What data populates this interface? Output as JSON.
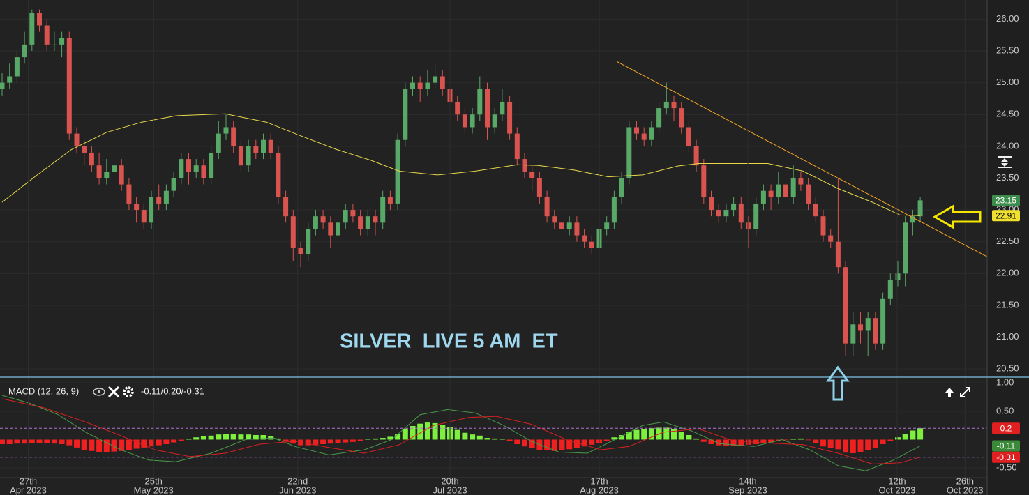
{
  "chart_data": [
    {
      "type": "candlestick",
      "annotation": "SILVER  LIVE 5 AM  ET",
      "up_color": "#58a868",
      "down_color": "#d9534f",
      "xlim": [
        0,
        132
      ],
      "ylim": [
        20.37,
        26.3
      ],
      "yticks": [
        {
          "value": 20.5,
          "label": "20.50"
        },
        {
          "value": 21,
          "label": "21.00"
        },
        {
          "value": 21.5,
          "label": "21.50"
        },
        {
          "value": 22,
          "label": "22.00"
        },
        {
          "value": 22.5,
          "label": "22.50"
        },
        {
          "value": 23,
          "label": "23.00"
        },
        {
          "value": 23.5,
          "label": "23.50"
        },
        {
          "value": 24,
          "label": "24.00"
        },
        {
          "value": 24.5,
          "label": "24.50"
        },
        {
          "value": 25,
          "label": "25.00"
        },
        {
          "value": 25.5,
          "label": "25.50"
        },
        {
          "value": 26,
          "label": "26.00"
        }
      ],
      "grid": true,
      "open": [
        24.9,
        25.0,
        25.1,
        25.4,
        25.6,
        26.1,
        25.9,
        25.6,
        25.6,
        25.7,
        24.2,
        24.0,
        23.9,
        23.7,
        23.5,
        23.6,
        23.7,
        23.4,
        23.1,
        23.0,
        22.8,
        23.2,
        23.1,
        23.3,
        23.5,
        23.8,
        23.6,
        23.7,
        23.5,
        23.9,
        24.2,
        24.3,
        24.0,
        23.7,
        24.0,
        23.9,
        24.1,
        23.9,
        23.2,
        22.9,
        22.4,
        22.3,
        22.7,
        22.9,
        22.8,
        22.6,
        22.8,
        23.0,
        22.9,
        22.7,
        22.9,
        22.8,
        23.2,
        23.1,
        24.1,
        24.9,
        25.0,
        24.9,
        25.0,
        25.1,
        24.9,
        24.7,
        24.5,
        24.3,
        24.5,
        24.9,
        24.3,
        24.5,
        24.7,
        24.2,
        23.8,
        23.6,
        23.5,
        23.2,
        22.9,
        22.8,
        22.7,
        22.8,
        22.6,
        22.5,
        22.4,
        22.7,
        22.8,
        23.2,
        23.5,
        24.3,
        24.2,
        24.1,
        24.3,
        24.6,
        24.7,
        24.6,
        24.3,
        24.0,
        23.7,
        23.2,
        23.0,
        22.9,
        23.0,
        23.1,
        22.8,
        22.7,
        23.1,
        23.3,
        23.2,
        23.4,
        23.2,
        23.5,
        23.4,
        23.1,
        22.9,
        22.6,
        22.5,
        22.1,
        20.9,
        21.2,
        21.1,
        21.3,
        20.9,
        21.6,
        21.9,
        22.0,
        22.8,
        22.9
      ],
      "high": [
        25.15,
        25.3,
        25.5,
        25.8,
        26.15,
        26.15,
        26.0,
        25.8,
        25.8,
        25.8,
        24.3,
        24.1,
        24.0,
        23.9,
        23.8,
        23.9,
        23.8,
        23.5,
        23.2,
        23.1,
        23.3,
        23.4,
        23.4,
        23.6,
        23.9,
        23.9,
        23.8,
        23.8,
        24.0,
        24.4,
        24.5,
        24.4,
        24.1,
        24.1,
        24.1,
        24.2,
        24.2,
        24.0,
        23.3,
        23.0,
        22.5,
        22.8,
        23.0,
        23.0,
        22.9,
        22.9,
        23.1,
        23.1,
        23.0,
        23.0,
        23.0,
        23.3,
        23.3,
        24.2,
        25.0,
        25.1,
        25.1,
        25.2,
        25.3,
        25.2,
        25.0,
        24.8,
        24.6,
        24.6,
        25.1,
        25.0,
        24.6,
        24.9,
        24.8,
        24.3,
        23.9,
        23.7,
        23.6,
        23.3,
        23.0,
        22.9,
        22.9,
        22.9,
        22.7,
        22.6,
        22.8,
        22.9,
        23.3,
        23.6,
        24.4,
        24.4,
        24.3,
        24.4,
        24.7,
        25.0,
        24.8,
        24.7,
        24.4,
        24.1,
        23.8,
        23.3,
        23.1,
        23.1,
        23.2,
        23.2,
        22.9,
        23.2,
        23.4,
        23.4,
        23.6,
        23.5,
        23.7,
        23.6,
        23.5,
        23.2,
        23.0,
        22.7,
        23.5,
        22.2,
        21.4,
        21.4,
        21.4,
        21.4,
        21.7,
        22.0,
        22.2,
        22.9,
        23.0,
        23.2
      ],
      "low": [
        24.8,
        24.9,
        25.0,
        25.3,
        25.5,
        25.8,
        25.5,
        25.5,
        25.4,
        24.1,
        23.9,
        23.7,
        23.6,
        23.4,
        23.4,
        23.5,
        23.3,
        23.0,
        22.8,
        22.7,
        22.7,
        23.0,
        23.0,
        23.2,
        23.4,
        23.4,
        23.5,
        23.4,
        23.4,
        23.8,
        24.1,
        23.9,
        23.6,
        23.6,
        23.8,
        23.8,
        23.8,
        23.1,
        22.8,
        22.2,
        22.1,
        22.2,
        22.6,
        22.7,
        22.4,
        22.5,
        22.7,
        22.8,
        22.6,
        22.6,
        22.6,
        22.7,
        23.0,
        23.0,
        24.0,
        24.8,
        24.7,
        24.8,
        24.9,
        24.8,
        24.6,
        24.4,
        24.2,
        24.2,
        24.4,
        24.1,
        24.2,
        24.4,
        24.1,
        23.7,
        23.5,
        23.3,
        23.1,
        22.8,
        22.7,
        22.6,
        22.6,
        22.5,
        22.4,
        22.3,
        22.3,
        22.6,
        22.7,
        23.1,
        23.4,
        24.1,
        24.0,
        24.0,
        24.2,
        24.5,
        24.4,
        24.2,
        23.9,
        23.6,
        23.1,
        22.9,
        22.8,
        22.8,
        22.9,
        22.7,
        22.4,
        22.6,
        23.0,
        23.0,
        23.1,
        23.1,
        23.1,
        23.3,
        23.0,
        22.8,
        22.5,
        22.4,
        22.0,
        20.7,
        20.7,
        20.9,
        20.7,
        20.8,
        20.8,
        21.5,
        21.8,
        21.8,
        22.6,
        22.8
      ],
      "close": [
        25.0,
        25.1,
        25.4,
        25.6,
        26.1,
        25.9,
        25.6,
        25.6,
        25.7,
        24.2,
        24.0,
        23.9,
        23.7,
        23.5,
        23.6,
        23.7,
        23.4,
        23.1,
        23.0,
        22.8,
        23.2,
        23.1,
        23.3,
        23.5,
        23.8,
        23.6,
        23.7,
        23.5,
        23.9,
        24.2,
        24.3,
        24.0,
        23.7,
        24.0,
        23.9,
        24.1,
        23.9,
        23.2,
        22.9,
        22.4,
        22.3,
        22.7,
        22.9,
        22.8,
        22.6,
        22.8,
        23.0,
        22.9,
        22.7,
        22.9,
        22.8,
        23.2,
        23.1,
        24.1,
        24.9,
        25.0,
        24.9,
        25.0,
        25.1,
        24.9,
        24.7,
        24.5,
        24.3,
        24.5,
        24.9,
        24.3,
        24.5,
        24.7,
        24.2,
        23.8,
        23.6,
        23.5,
        23.2,
        22.9,
        22.8,
        22.7,
        22.8,
        22.6,
        22.5,
        22.4,
        22.7,
        22.8,
        23.2,
        23.5,
        24.3,
        24.2,
        24.1,
        24.3,
        24.6,
        24.7,
        24.6,
        24.3,
        24.0,
        23.7,
        23.2,
        23.0,
        22.9,
        23.0,
        23.1,
        22.8,
        22.7,
        23.1,
        23.3,
        23.2,
        23.4,
        23.2,
        23.5,
        23.4,
        23.1,
        22.9,
        22.6,
        22.5,
        22.1,
        20.9,
        21.2,
        21.1,
        21.3,
        20.9,
        21.6,
        21.9,
        22.0,
        22.8,
        22.9,
        23.15
      ],
      "moving_average": {
        "color": "#e8d84a",
        "x": [
          0,
          4.7,
          9.3,
          14,
          18.7,
          23.3,
          29.9,
          35.4,
          40.1,
          44.8,
          49.4,
          53.2,
          58.3,
          63.4,
          69,
          71.8,
          76.5,
          81.2,
          85.8,
          90.5,
          93.3,
          102.6,
          107.3,
          111.9,
          116.6,
          120.3,
          123
        ],
        "values": [
          23.12,
          23.55,
          23.95,
          24.22,
          24.38,
          24.48,
          24.51,
          24.38,
          24.16,
          23.95,
          23.78,
          23.61,
          23.55,
          23.61,
          23.71,
          23.7,
          23.63,
          23.52,
          23.55,
          23.69,
          23.73,
          23.73,
          23.61,
          23.34,
          23.12,
          22.92,
          22.91
        ]
      },
      "trendline": {
        "color": "#f5a623",
        "x": [
          82.4,
          132.5
        ],
        "values": [
          25.33,
          22.23
        ]
      }
    },
    {
      "type": "macd",
      "title": "MACD (12, 26, 9)",
      "values_text": "-0.11/0.20/-0.31",
      "up_color": "#7cf03c",
      "down_color": "#f02020",
      "xlim": [
        0,
        132
      ],
      "ylim": [
        -0.67,
        1.1
      ],
      "yticks": [
        {
          "value": -0.5,
          "label": "-0.50"
        },
        {
          "value": 0.5,
          "label": "0.50"
        },
        {
          "value": 1,
          "label": "1.00"
        }
      ],
      "xticks": [
        {
          "value": 3.5,
          "label": "27th",
          "sublabel": "Apr 2023"
        },
        {
          "value": 20.3,
          "label": "25th",
          "sublabel": "May 2023"
        },
        {
          "value": 39.6,
          "label": "22nd",
          "sublabel": "Jun 2023"
        },
        {
          "value": 60,
          "label": "20th",
          "sublabel": "Jul 2023"
        },
        {
          "value": 80,
          "label": "17th",
          "sublabel": "Aug 2023"
        },
        {
          "value": 99.9,
          "label": "14th",
          "sublabel": "Sep 2023"
        },
        {
          "value": 119.9,
          "label": "12th",
          "sublabel": "Oct 2023"
        },
        {
          "value": 129,
          "label": "26th",
          "sublabel": "Oct 2023"
        }
      ],
      "grid": true,
      "histogram": [
        -0.08,
        -0.08,
        -0.07,
        -0.07,
        -0.06,
        -0.06,
        -0.06,
        -0.07,
        -0.08,
        -0.1,
        -0.14,
        -0.18,
        -0.2,
        -0.22,
        -0.22,
        -0.21,
        -0.2,
        -0.18,
        -0.16,
        -0.14,
        -0.12,
        -0.1,
        -0.08,
        -0.05,
        -0.02,
        0.01,
        0.04,
        0.06,
        0.07,
        0.09,
        0.1,
        0.1,
        0.09,
        0.09,
        0.08,
        0.08,
        0.06,
        0.02,
        -0.03,
        -0.07,
        -0.1,
        -0.1,
        -0.09,
        -0.08,
        -0.07,
        -0.06,
        -0.05,
        -0.04,
        -0.03,
        0.01,
        0.02,
        0.03,
        0.05,
        0.1,
        0.18,
        0.24,
        0.28,
        0.3,
        0.29,
        0.26,
        0.22,
        0.17,
        0.12,
        0.09,
        0.07,
        0.03,
        0.02,
        0.01,
        -0.03,
        -0.08,
        -0.12,
        -0.15,
        -0.18,
        -0.19,
        -0.2,
        -0.19,
        -0.17,
        -0.15,
        -0.12,
        -0.09,
        -0.06,
        -0.02,
        0.04,
        0.08,
        0.14,
        0.17,
        0.19,
        0.2,
        0.21,
        0.21,
        0.18,
        0.14,
        0.08,
        0.02,
        -0.04,
        -0.08,
        -0.1,
        -0.11,
        -0.11,
        -0.1,
        -0.09,
        -0.08,
        -0.06,
        -0.05,
        -0.03,
        -0.01,
        0.01,
        0.02,
        -0.01,
        -0.06,
        -0.12,
        -0.15,
        -0.17,
        -0.23,
        -0.24,
        -0.22,
        -0.19,
        -0.15,
        -0.08,
        -0.03,
        0.04,
        0.1,
        0.16,
        0.2
      ],
      "series": [
        {
          "color": "#4a9a4a",
          "x": [
            0,
            3.7,
            7.5,
            11.2,
            15.9,
            19.6,
            23.3,
            28,
            32.6,
            36.4,
            39.2,
            43.8,
            48.5,
            52.2,
            56,
            59.7,
            63.4,
            67.2,
            70.9,
            74.6,
            78.4,
            82.1,
            85.8,
            88.6,
            92.4,
            96.1,
            100.7,
            104.5,
            108.2,
            112,
            115.7,
            119.4,
            123
          ],
          "values": [
            0.78,
            0.64,
            0.44,
            0.13,
            -0.18,
            -0.36,
            -0.39,
            -0.24,
            0.0,
            0.03,
            -0.12,
            -0.27,
            -0.18,
            0.0,
            0.44,
            0.53,
            0.47,
            0.25,
            -0.03,
            -0.22,
            -0.24,
            0.0,
            0.25,
            0.31,
            0.15,
            -0.07,
            -0.12,
            0.0,
            -0.18,
            -0.46,
            -0.55,
            -0.36,
            -0.11
          ]
        },
        {
          "color": "#d82020",
          "x": [
            0,
            5.6,
            11.2,
            15.9,
            20.5,
            25.2,
            29.9,
            34.5,
            39.2,
            43.8,
            48.5,
            53.2,
            57.8,
            62.5,
            66.2,
            70.9,
            75.6,
            80.2,
            84,
            88.6,
            93.3,
            97.9,
            102.6,
            107.3,
            112,
            116.6,
            120.3,
            123
          ],
          "values": [
            0.72,
            0.56,
            0.31,
            0.07,
            -0.18,
            -0.3,
            -0.24,
            -0.08,
            -0.03,
            -0.14,
            -0.24,
            -0.09,
            0.25,
            0.39,
            0.41,
            0.27,
            0.0,
            -0.18,
            -0.12,
            0.13,
            0.19,
            -0.02,
            -0.06,
            -0.09,
            -0.24,
            -0.43,
            -0.41,
            -0.31
          ]
        }
      ]
    }
  ]
}
